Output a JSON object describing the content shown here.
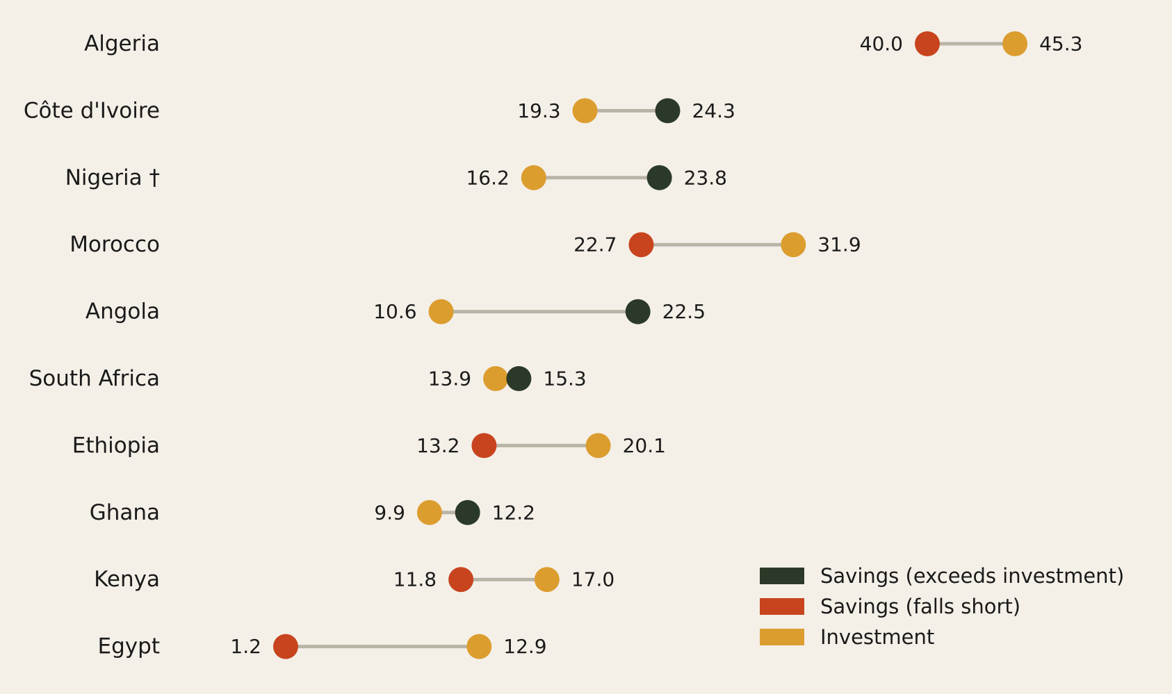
{
  "colors": {
    "background": "#f4f0e8",
    "savings_exceeds": "#2b3a28",
    "savings_short": "#c8441e",
    "investment": "#dc9d2f",
    "connector": "#b8b4a6",
    "text": "#1a1a1a"
  },
  "legend": {
    "items": [
      {
        "key": "savings_exceeds",
        "label": "Savings (exceeds investment)"
      },
      {
        "key": "savings_short",
        "label": "Savings (falls short)"
      },
      {
        "key": "investment",
        "label": "Investment"
      }
    ],
    "placement": "bottom-right"
  },
  "chart_data": {
    "type": "dumbbell",
    "title": "",
    "xlabel": "",
    "ylabel": "",
    "xlim": [
      -8,
      48
    ],
    "grid": false,
    "value_format": "one decimal",
    "series": [
      {
        "name": "Savings",
        "key": "savings"
      },
      {
        "name": "Investment",
        "key": "investment"
      }
    ],
    "rows": [
      {
        "country": "Algeria",
        "savings": 40.0,
        "investment": 45.3
      },
      {
        "country": "Côte d'Ivoire",
        "savings": 24.3,
        "investment": 19.3
      },
      {
        "country": "Nigeria †",
        "savings": 23.8,
        "investment": 16.2
      },
      {
        "country": "Morocco",
        "savings": 22.7,
        "investment": 31.9
      },
      {
        "country": "Angola",
        "savings": 22.5,
        "investment": 10.6
      },
      {
        "country": "South Africa",
        "savings": 15.3,
        "investment": 13.9
      },
      {
        "country": "Ethiopia",
        "savings": 13.2,
        "investment": 20.1
      },
      {
        "country": "Ghana",
        "savings": 12.2,
        "investment": 9.9
      },
      {
        "country": "Kenya",
        "savings": 11.8,
        "investment": 17.0
      },
      {
        "country": "Egypt",
        "savings": 1.2,
        "investment": 12.9
      }
    ]
  }
}
